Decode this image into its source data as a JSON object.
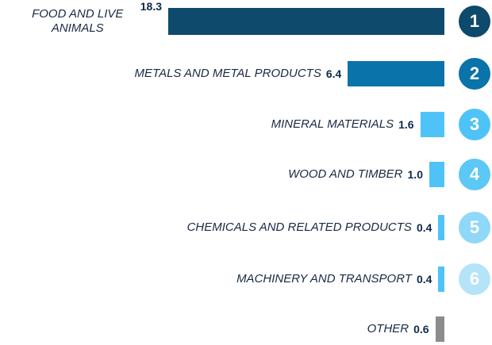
{
  "chart_data": {
    "type": "bar",
    "orientation": "horizontal",
    "categories": [
      "FOOD AND LIVE ANIMALS",
      "METALS AND METAL PRODUCTS",
      "MINERAL MATERIALS",
      "WOOD AND TIMBER",
      "CHEMICALS AND RELATED PRODUCTS",
      "MACHINERY AND TRANSPORT",
      "OTHER"
    ],
    "values": [
      18.3,
      6.4,
      1.6,
      1.0,
      0.4,
      0.4,
      0.6
    ],
    "value_labels": [
      "18.3",
      "6.4",
      "1.6",
      "1.0",
      "0.4",
      "0.4",
      "0.6"
    ],
    "ranks": [
      1,
      2,
      3,
      4,
      5,
      6,
      null
    ],
    "colors": [
      "#0d4a6b",
      "#0a73aa",
      "#4fc3f7",
      "#4fc3f7",
      "#4fc3f7",
      "#4fc3f7",
      "#8c8c8c"
    ],
    "rank_colors": [
      "#0d4a6b",
      "#0a73aa",
      "#4fc3f7",
      "#5cc8f5",
      "#8fd8f8",
      "#b5e4f8",
      null
    ]
  }
}
